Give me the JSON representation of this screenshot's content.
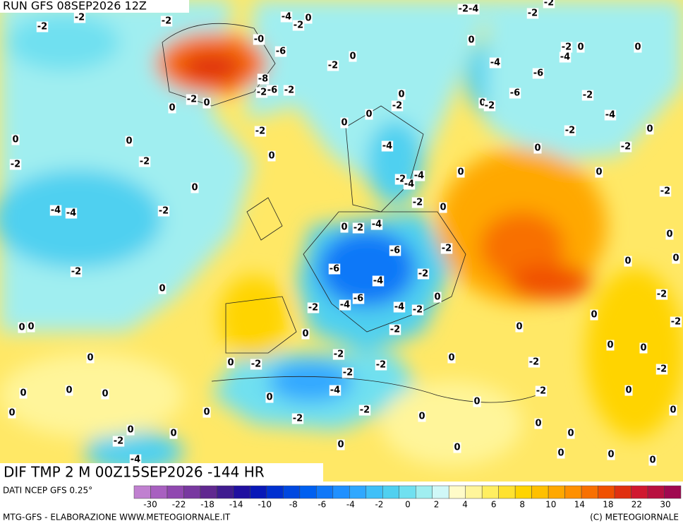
{
  "header": {
    "run": "RUN GFS 08SEP2026 12Z"
  },
  "map": {
    "title": "DIF TMP 2 M 00Z15SEP2026 -144 HR",
    "labels": [
      "-2",
      "-2",
      "-2",
      "-4",
      "-2",
      "0",
      "-2-4",
      "-2",
      "-0",
      "-6",
      "0",
      "-2",
      "-8",
      "-2",
      "-6",
      "-2",
      "0",
      "-2",
      "0",
      "0",
      "-2",
      "0",
      "-2",
      "0",
      "0",
      "0",
      "-2",
      "-2",
      "0",
      "-4",
      "0",
      "-4",
      "-4",
      "-2",
      "-2",
      "-4",
      "-4",
      "0",
      "-2",
      "0",
      "0",
      "-2",
      "-4",
      "-6",
      "-2",
      "-6",
      "-2",
      "-2",
      "0",
      "-4",
      "-6",
      "-4",
      "-2",
      "-4",
      "-2",
      "0",
      "-2",
      "0",
      "0",
      "0",
      "0",
      "-2",
      "0",
      "-2",
      "-2",
      "-2",
      "0",
      "-4",
      "-2",
      "-2",
      "0",
      "0",
      "0",
      "0",
      "0",
      "0",
      "0",
      "0",
      "-2",
      "-4",
      "0",
      "0",
      "0",
      "0",
      "0",
      "-2",
      "-2",
      "0",
      "0",
      "0",
      "0",
      "0",
      "0",
      "0",
      "0",
      "0",
      "-2",
      "-2",
      "-2",
      "0",
      "0",
      "0",
      "0",
      "-2",
      "0",
      "-2",
      "0",
      "-2",
      "0",
      "-4",
      "-2",
      "0",
      "-2",
      "-6",
      "-6",
      "-4",
      "-4",
      "-2",
      "0",
      "0",
      "0",
      "-2"
    ]
  },
  "colorbar": {
    "source": "DATI NCEP GFS 0.25°",
    "colors": [
      "#c080d0",
      "#a860c0",
      "#9048b0",
      "#7838a0",
      "#602890",
      "#401c90",
      "#2010a0",
      "#0818b8",
      "#0030d0",
      "#0048e0",
      "#0060f0",
      "#1078f8",
      "#2090ff",
      "#30a8ff",
      "#40c0f8",
      "#50d0f0",
      "#70e0f0",
      "#a0eef0",
      "#d0f8f8",
      "#fffbc8",
      "#fff59a",
      "#ffee60",
      "#ffe230",
      "#ffd400",
      "#ffc000",
      "#ffa800",
      "#ff9000",
      "#f87000",
      "#f05000",
      "#e03010",
      "#d01830",
      "#b81040",
      "#a00850"
    ],
    "ticks": [
      -30,
      -22,
      -18,
      -14,
      -10,
      -8,
      -6,
      -4,
      -2,
      0,
      2,
      4,
      6,
      8,
      10,
      14,
      18,
      22,
      30
    ]
  },
  "footer": {
    "left": "MTG-GFS - ELABORAZIONE WWW.METEOGIORNALE.IT",
    "right": "(C) METEOGIORNALE"
  }
}
